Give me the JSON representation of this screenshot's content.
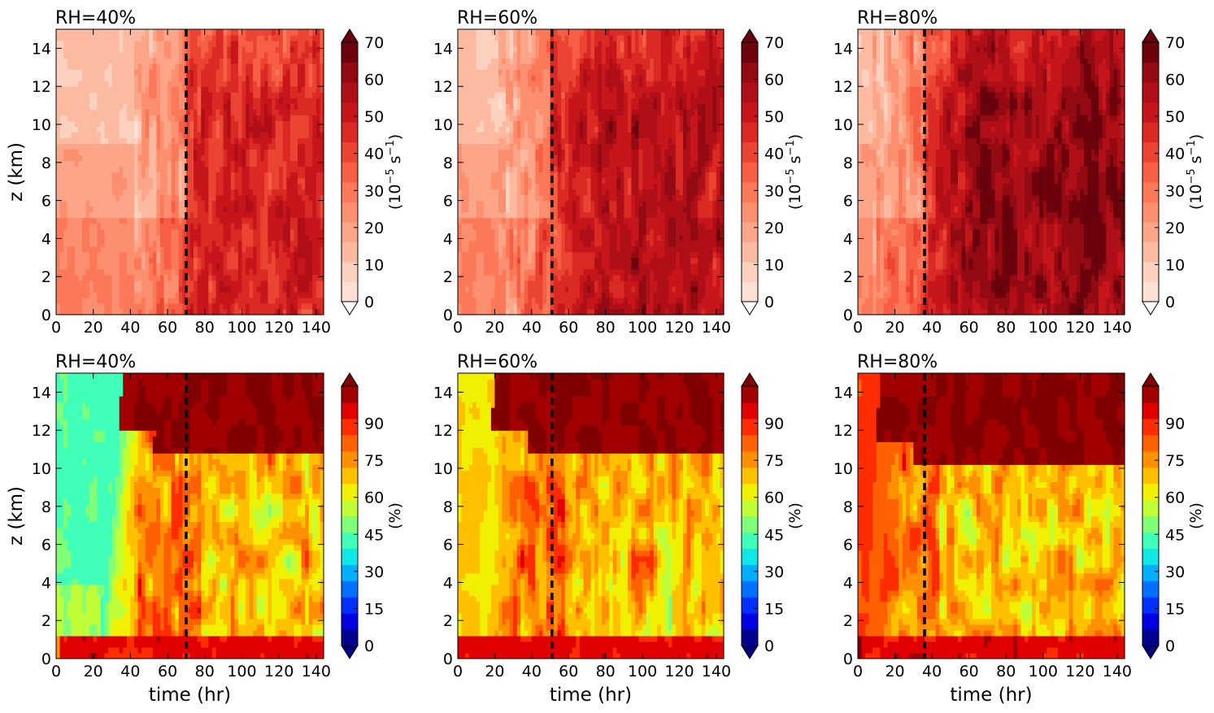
{
  "figure": {
    "xlabel": "time (hr)",
    "ylabel": "z (km)",
    "xticks": [
      0,
      20,
      40,
      60,
      80,
      100,
      120,
      140
    ],
    "yticks": [
      0,
      2,
      4,
      6,
      8,
      10,
      12,
      14
    ],
    "xlim": [
      0,
      144
    ],
    "ylim": [
      0,
      15
    ]
  },
  "colorbars": {
    "vorticity": {
      "label_prefix": "(10",
      "label_exp": "−5",
      "label_mid": " s",
      "label_exp2": "−1",
      "label_suffix": ")",
      "ticks": [
        "0",
        "10",
        "20",
        "30",
        "40",
        "50",
        "60",
        "70"
      ],
      "colors": [
        "#fee1d4",
        "#fdd1bf",
        "#fcbba1",
        "#fca588",
        "#fc8f6f",
        "#fb7858",
        "#f75f44",
        "#ec4432",
        "#db2a24",
        "#c6161c",
        "#af0f16",
        "#930a12",
        "#6b020c"
      ],
      "over": "#67000d",
      "under": "#ffffff"
    },
    "rh": {
      "label": "(%)",
      "ticks": [
        "0",
        "15",
        "30",
        "45",
        "60",
        "75",
        "90"
      ],
      "colors": [
        "#000090",
        "#0000e0",
        "#0030ff",
        "#0070ff",
        "#00b0ff",
        "#10e8e8",
        "#40ffb8",
        "#80ff78",
        "#c0ff38",
        "#f0f000",
        "#ffc000",
        "#ff9000",
        "#ff6000",
        "#ff2c00",
        "#e00000",
        "#a00000"
      ],
      "over": "#800000",
      "under": "#00007f"
    }
  },
  "chart_data": [
    {
      "panel": "top-left",
      "type": "heatmap",
      "title": "RH=40%",
      "field": "relative vorticity",
      "colorbar": "vorticity",
      "vline_x": 70,
      "xlim": [
        0,
        144
      ],
      "ylim": [
        0,
        15
      ],
      "zlim": [
        0,
        70
      ],
      "description": "weak pre-genesis vorticity then strong growth after dashed line"
    },
    {
      "panel": "top-middle",
      "type": "heatmap",
      "title": "RH=60%",
      "field": "relative vorticity",
      "colorbar": "vorticity",
      "vline_x": 51,
      "xlim": [
        0,
        144
      ],
      "ylim": [
        0,
        15
      ],
      "zlim": [
        0,
        70
      ]
    },
    {
      "panel": "top-right",
      "type": "heatmap",
      "title": "RH=80%",
      "field": "relative vorticity",
      "colorbar": "vorticity",
      "vline_x": 36,
      "xlim": [
        0,
        144
      ],
      "ylim": [
        0,
        15
      ],
      "zlim": [
        0,
        70
      ]
    },
    {
      "panel": "bottom-left",
      "type": "heatmap",
      "title": "RH=40%",
      "field": "relative humidity",
      "colorbar": "rh",
      "vline_x": 70,
      "xlim": [
        0,
        144
      ],
      "ylim": [
        0,
        15
      ],
      "zlim": [
        0,
        100
      ],
      "initial_rh": 40
    },
    {
      "panel": "bottom-middle",
      "type": "heatmap",
      "title": "RH=60%",
      "field": "relative humidity",
      "colorbar": "rh",
      "vline_x": 51,
      "xlim": [
        0,
        144
      ],
      "ylim": [
        0,
        15
      ],
      "zlim": [
        0,
        100
      ],
      "initial_rh": 60
    },
    {
      "panel": "bottom-right",
      "type": "heatmap",
      "title": "RH=80%",
      "field": "relative humidity",
      "colorbar": "rh",
      "vline_x": 36,
      "xlim": [
        0,
        144
      ],
      "ylim": [
        0,
        15
      ],
      "zlim": [
        0,
        100
      ],
      "initial_rh": 80
    }
  ]
}
